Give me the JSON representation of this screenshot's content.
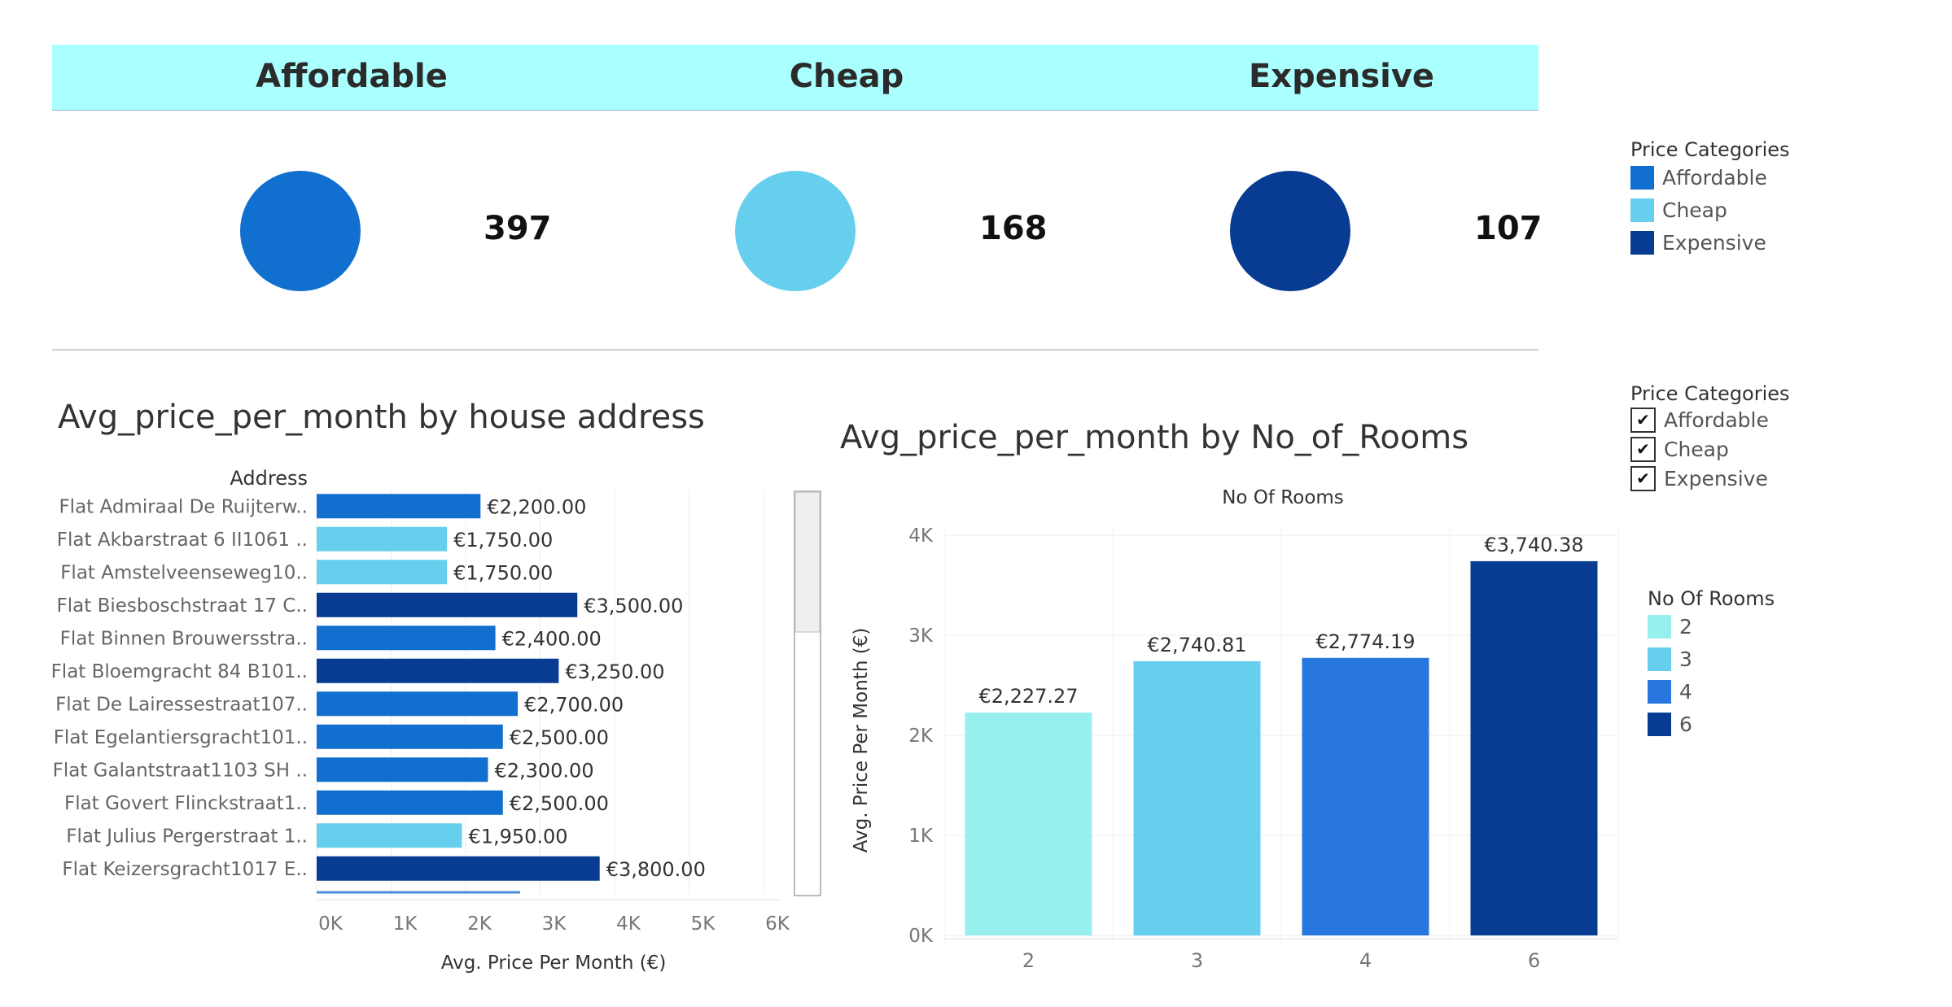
{
  "kpi": {
    "items": [
      {
        "label": "Affordable",
        "count": "397",
        "color": "#1170cf"
      },
      {
        "label": "Cheap",
        "count": "168",
        "color": "#67cfee"
      },
      {
        "label": "Expensive",
        "count": "107",
        "color": "#073c92"
      }
    ]
  },
  "legend_categories": {
    "title": "Price Categories",
    "items": [
      {
        "label": "Affordable",
        "color": "#1170cf"
      },
      {
        "label": "Cheap",
        "color": "#67cfee"
      },
      {
        "label": "Expensive",
        "color": "#073c92"
      }
    ]
  },
  "filter_categories": {
    "title": "Price Categories",
    "items": [
      {
        "label": "Affordable",
        "checked": true
      },
      {
        "label": "Cheap",
        "checked": true
      },
      {
        "label": "Expensive",
        "checked": true
      }
    ]
  },
  "legend_rooms": {
    "title": "No Of Rooms",
    "items": [
      {
        "label": "2",
        "color": "#98f0ee"
      },
      {
        "label": "3",
        "color": "#67cfee"
      },
      {
        "label": "4",
        "color": "#2877de"
      },
      {
        "label": "6",
        "color": "#073c92"
      }
    ]
  },
  "chart_data": [
    {
      "type": "bar",
      "orientation": "horizontal",
      "title": "Avg_price_per_month by house address",
      "row_header": "Address",
      "xlabel": "Avg. Price Per Month (€)",
      "xlim": [
        0,
        6500
      ],
      "x_ticks": [
        "0K",
        "1K",
        "2K",
        "3K",
        "4K",
        "5K",
        "6K"
      ],
      "categories": [
        "Flat Admiraal De Ruijterw..",
        "Flat Akbarstraat 6 II1061 ..",
        "Flat Amstelveenseweg10..",
        "Flat Biesboschstraat 17 C..",
        "Flat Binnen Brouwersstra..",
        "Flat Bloemgracht 84 B101..",
        "Flat De Lairessestraat107..",
        "Flat Egelantiersgracht101..",
        "Flat Galantstraat1103 SH ..",
        "Flat Govert Flinckstraat1..",
        "Flat Julius Pergerstraat 1..",
        "Flat Keizersgracht1017 E.."
      ],
      "values": [
        2200,
        1750,
        1750,
        3500,
        2400,
        3250,
        2700,
        2500,
        2300,
        2500,
        1950,
        3800
      ],
      "value_labels": [
        "€2,200.00",
        "€1,750.00",
        "€1,750.00",
        "€3,500.00",
        "€2,400.00",
        "€3,250.00",
        "€2,700.00",
        "€2,500.00",
        "€2,300.00",
        "€2,500.00",
        "€1,950.00",
        "€3,800.00"
      ],
      "price_category": [
        "Affordable",
        "Cheap",
        "Cheap",
        "Expensive",
        "Affordable",
        "Expensive",
        "Affordable",
        "Affordable",
        "Affordable",
        "Affordable",
        "Cheap",
        "Expensive"
      ],
      "grid": true
    },
    {
      "type": "bar",
      "title": "Avg_price_per_month by No_of_Rooms",
      "column_header": "No Of Rooms",
      "ylabel": "Avg. Price Per Month (€)",
      "ylim": [
        0,
        4000
      ],
      "y_ticks": [
        "0K",
        "1K",
        "2K",
        "3K",
        "4K"
      ],
      "categories": [
        "2",
        "3",
        "4",
        "6"
      ],
      "values": [
        2227.27,
        2740.81,
        2774.19,
        3740.38
      ],
      "value_labels": [
        "€2,227.27",
        "€2,740.81",
        "€2,774.19",
        "€3,740.38"
      ],
      "grid": true
    }
  ]
}
